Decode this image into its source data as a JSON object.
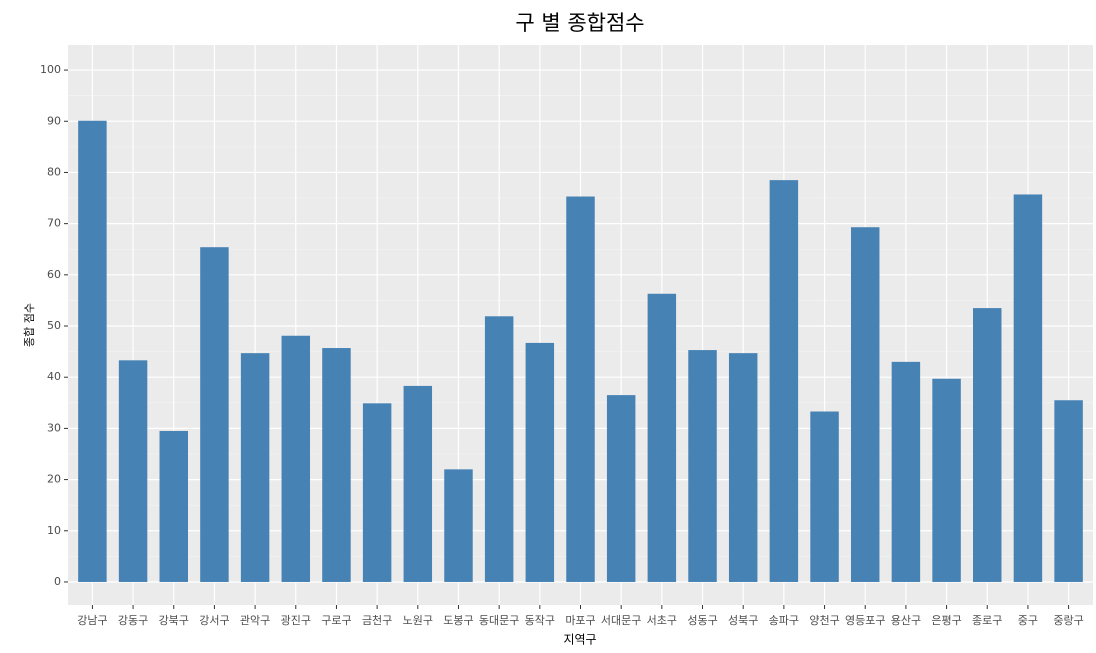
{
  "chart_data": {
    "type": "bar",
    "title": "구 별 종합점수",
    "x_label": "지역구",
    "y_label": "종합 점수",
    "categories": [
      "강남구",
      "강동구",
      "강북구",
      "강서구",
      "관악구",
      "광진구",
      "구로구",
      "금천구",
      "노원구",
      "도봉구",
      "동대문구",
      "동작구",
      "마포구",
      "서대문구",
      "서초구",
      "성동구",
      "성북구",
      "송파구",
      "양천구",
      "영등포구",
      "용산구",
      "은평구",
      "종로구",
      "중구",
      "중랑구"
    ],
    "values": [
      90.1,
      43.3,
      29.5,
      65.4,
      44.7,
      48.1,
      45.7,
      34.9,
      38.3,
      22.0,
      51.9,
      46.7,
      75.3,
      36.5,
      56.3,
      45.3,
      44.7,
      78.5,
      33.3,
      69.3,
      43.0,
      39.7,
      53.5,
      75.7,
      35.5
    ],
    "color": "#4682b4",
    "ylim": [
      -4.5,
      104.9
    ],
    "yticks": [
      0,
      10,
      20,
      30,
      40,
      50,
      60,
      70,
      80,
      90,
      100
    ],
    "y_minor_ticks": [
      5,
      15,
      25,
      35,
      45,
      55,
      65,
      75,
      85,
      95
    ],
    "grid": true
  }
}
